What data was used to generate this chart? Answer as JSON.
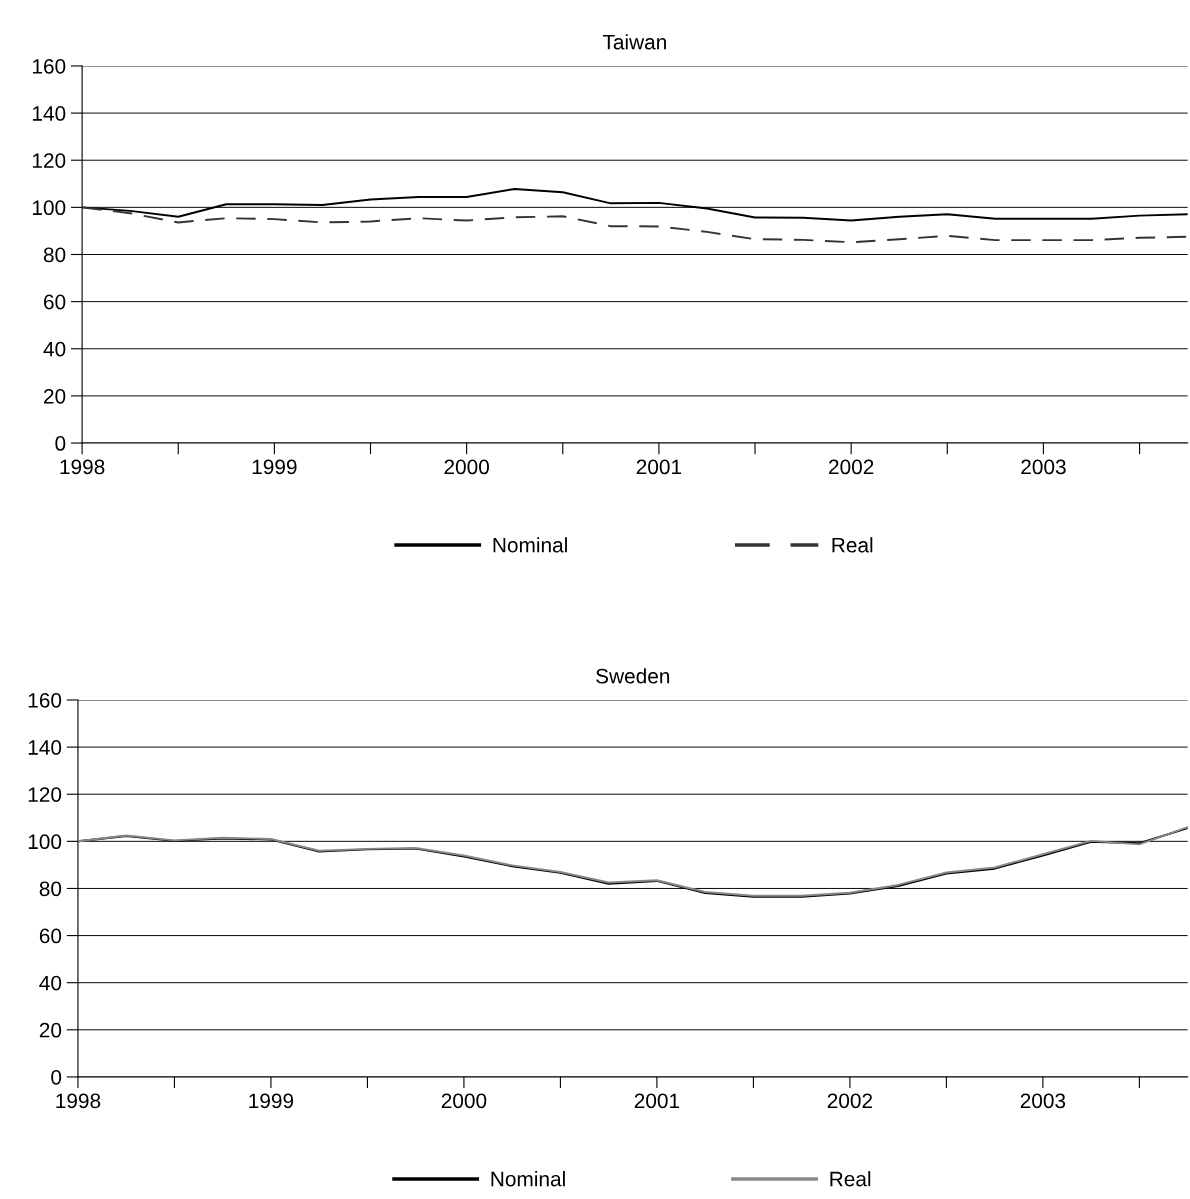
{
  "chart_data": [
    {
      "type": "line",
      "title": "Taiwan",
      "x": [
        1998.0,
        1998.25,
        1998.5,
        1998.75,
        1999.0,
        1999.25,
        1999.5,
        1999.75,
        2000.0,
        2000.25,
        2000.5,
        2000.75,
        2001.0,
        2001.25,
        2001.5,
        2001.75,
        2002.0,
        2002.25,
        2002.5,
        2002.75,
        2003.0,
        2003.25,
        2003.5,
        2003.75
      ],
      "series": [
        {
          "name": "Nominal",
          "color": "#000000",
          "line_style": "solid",
          "values": [
            100,
            98.5,
            96,
            101.3,
            101.3,
            101,
            103.3,
            104.4,
            104.4,
            107.8,
            106.4,
            101.7,
            101.9,
            99.5,
            95.7,
            95.6,
            94.4,
            96,
            97.1,
            95.2,
            95.2,
            95.2,
            96.5,
            97.1
          ]
        },
        {
          "name": "Real",
          "color": "#333333",
          "line_style": "dashed",
          "values": [
            100,
            97.5,
            93.6,
            95.4,
            95,
            93.6,
            94,
            95.4,
            94.4,
            95.8,
            96.2,
            92,
            91.9,
            89.6,
            86.5,
            86.2,
            85.2,
            86.5,
            87.9,
            86.1,
            86.1,
            86.1,
            87.1,
            87.5
          ]
        }
      ],
      "xlim": [
        1998,
        2003.75
      ],
      "xticks": [
        1998,
        {
          "value": 1998.5,
          "label": null
        },
        1999,
        {
          "value": 1999.5,
          "label": null
        },
        2000,
        {
          "value": 2000.5,
          "label": null
        },
        2001,
        {
          "value": 2001.5,
          "label": null
        },
        2002,
        {
          "value": 2002.5,
          "label": null
        },
        2003,
        {
          "value": 2003.5,
          "label": null
        }
      ],
      "ylim": [
        0,
        160
      ],
      "yticks": [
        0,
        20,
        40,
        60,
        80,
        100,
        120,
        140,
        160
      ],
      "grid": "y",
      "legend": "bottom"
    },
    {
      "type": "line",
      "title": "Sweden",
      "x": [
        1998.0,
        1998.25,
        1998.5,
        1998.75,
        1999.0,
        1999.25,
        1999.5,
        1999.75,
        2000.0,
        2000.25,
        2000.5,
        2000.75,
        2001.0,
        2001.25,
        2001.5,
        2001.75,
        2002.0,
        2002.25,
        2002.5,
        2002.75,
        2003.0,
        2003.25,
        2003.5,
        2003.75
      ],
      "series": [
        {
          "name": "Nominal",
          "color": "#000000",
          "line_style": "solid",
          "values": [
            100,
            102.3,
            100.2,
            101.2,
            100.8,
            95.7,
            96.6,
            96.9,
            93.5,
            89.4,
            86.6,
            82,
            83.2,
            78.1,
            76.5,
            76.5,
            77.8,
            81,
            86.3,
            88.4,
            94,
            99.8,
            99.2,
            105.6
          ]
        },
        {
          "name": "Real",
          "color": "#888888",
          "line_style": "solid",
          "values": [
            100,
            102.5,
            100.4,
            101.5,
            101,
            96,
            96.8,
            97.2,
            94,
            89.8,
            87,
            82.5,
            83.5,
            78.5,
            76.9,
            76.9,
            78.2,
            81.5,
            86.8,
            88.9,
            94.5,
            100.2,
            98.7,
            106
          ]
        }
      ],
      "xlim": [
        1998,
        2003.75
      ],
      "xticks": [
        1998,
        {
          "value": 1998.5,
          "label": null
        },
        1999,
        {
          "value": 1999.5,
          "label": null
        },
        2000,
        {
          "value": 2000.5,
          "label": null
        },
        2001,
        {
          "value": 2001.5,
          "label": null
        },
        2002,
        {
          "value": 2002.5,
          "label": null
        },
        2003,
        {
          "value": 2003.5,
          "label": null
        }
      ],
      "ylim": [
        0,
        160
      ],
      "yticks": [
        0,
        20,
        40,
        60,
        80,
        100,
        120,
        140,
        160
      ],
      "grid": "y",
      "legend": "bottom"
    }
  ]
}
